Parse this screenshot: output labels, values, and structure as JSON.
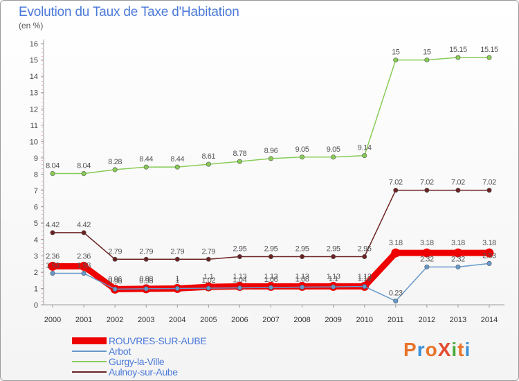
{
  "title": "Evolution du Taux de Taxe d'Habitation",
  "unit": "(en %)",
  "logo": {
    "text": "ProXiti",
    "colors": [
      "#e8742a",
      "#3a8fd9",
      "#e8742a",
      "#e24b2f",
      "#4aaa3a",
      "#e8742a",
      "#3a8fd9"
    ]
  },
  "chart_data": {
    "type": "line",
    "title": "Evolution du Taux de Taxe d'Habitation",
    "ylabel": "(en %)",
    "xlabel": "",
    "ylim": [
      0,
      16
    ],
    "yticks": [
      "0",
      "1",
      "2",
      "3",
      "4",
      "5",
      "6",
      "7",
      "8",
      "9",
      "10",
      "11",
      "12",
      "13",
      "14",
      "15",
      "16"
    ],
    "categories": [
      "2000",
      "2001",
      "2002",
      "2003",
      "2004",
      "2005",
      "2006",
      "2007",
      "2008",
      "2009",
      "2010",
      "2011",
      "2012",
      "2013",
      "2014"
    ],
    "series": [
      {
        "name": "ROUVRES-SUR-AUBE",
        "color": "#ee0000",
        "style": "thick",
        "values": [
          2.36,
          2.36,
          0.96,
          0.98,
          1,
          1.1,
          1.13,
          1.13,
          1.13,
          1.13,
          1.13,
          3.18,
          3.18,
          3.18,
          3.18
        ],
        "labels": [
          "2.36",
          "2.36",
          "0.96",
          "0.98",
          "1",
          "1.1",
          "1.13",
          "1.13",
          "1.13",
          "1.13",
          "1.13",
          "3.18",
          "3.18",
          "3.18",
          "3.18"
        ]
      },
      {
        "name": "Arbot",
        "color": "#6699cc",
        "style": "thin",
        "values": [
          1.93,
          1.93,
          0.96,
          0.98,
          1,
          1.02,
          1.04,
          1.06,
          1.08,
          1.1,
          1.12,
          0.23,
          2.32,
          2.32,
          2.53
        ],
        "labels": [
          "1.93",
          "1.93",
          "0.96",
          "0.98",
          "1",
          "1.02",
          "1.04",
          "1.06",
          "1.08",
          "1.1",
          "1.12",
          "0.23",
          "2.32",
          "2.32",
          "2.53"
        ]
      },
      {
        "name": "Gurgy-la-Ville",
        "color": "#88cc55",
        "style": "thin",
        "values": [
          8.04,
          8.04,
          8.28,
          8.44,
          8.44,
          8.61,
          8.78,
          8.96,
          9.05,
          9.05,
          9.14,
          15,
          15,
          15.15,
          15.15
        ],
        "labels": [
          "8.04",
          "8.04",
          "8.28",
          "8.44",
          "8.44",
          "8.61",
          "8.78",
          "8.96",
          "9.05",
          "9.05",
          "9.14",
          "15",
          "15",
          "15.15",
          "15.15"
        ]
      },
      {
        "name": "Aulnoy-sur-Aube",
        "color": "#6b2222",
        "style": "thin",
        "values": [
          4.42,
          4.42,
          2.79,
          2.79,
          2.79,
          2.79,
          2.95,
          2.95,
          2.95,
          2.95,
          2.95,
          7.02,
          7.02,
          7.02,
          7.02
        ],
        "labels": [
          "4.42",
          "4.42",
          "2.79",
          "2.79",
          "2.79",
          "2.79",
          "2.95",
          "2.95",
          "2.95",
          "2.95",
          "2.95",
          "7.02",
          "7.02",
          "7.02",
          "7.02"
        ]
      }
    ],
    "legend": [
      "ROUVRES-SUR-AUBE",
      "Arbot",
      "Gurgy-la-Ville",
      "Aulnoy-sur-Aube"
    ],
    "legend_position": "bottom-left",
    "grid": false
  }
}
